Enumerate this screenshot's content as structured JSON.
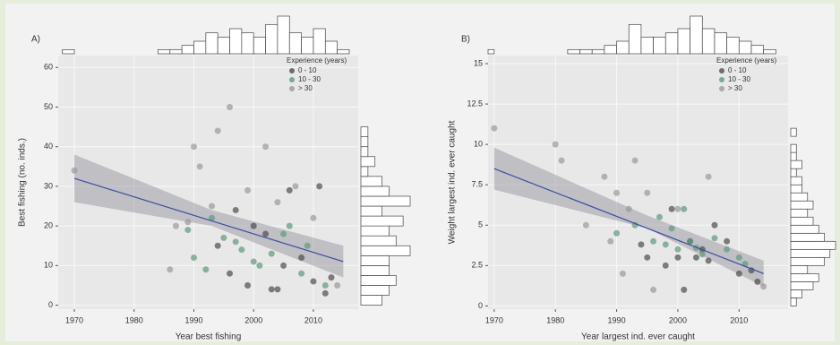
{
  "chart_data": [
    {
      "type": "scatter",
      "title": "A)",
      "xlabel": "Year best fishing",
      "ylabel": "Best fishing (no. inds.)",
      "xlim": [
        1967.3,
        2017.5
      ],
      "ylim": [
        -1,
        63
      ],
      "xticks": [
        1970,
        1980,
        1990,
        2000,
        2010
      ],
      "yticks": [
        0,
        10,
        20,
        30,
        40,
        50,
        60
      ],
      "grid": true,
      "legend_title": "Experience (years)",
      "legend_position": "top-right",
      "series": [
        {
          "name": "0 - 10",
          "color": "#4d4d4d",
          "x": [
            1996,
            1999,
            2003,
            2005,
            2008,
            2010,
            2012,
            2002,
            2000,
            1994,
            1997,
            2006,
            2011,
            2004,
            2013
          ],
          "values": [
            8,
            5,
            4,
            10,
            12,
            6,
            3,
            18,
            20,
            15,
            24,
            29,
            30,
            4,
            7
          ]
        },
        {
          "name": "10 - 30",
          "color": "#5f9a7c",
          "x": [
            1990,
            1992,
            1995,
            1998,
            2001,
            2003,
            2006,
            2009,
            1989,
            1993,
            2000,
            2005,
            2008,
            1997,
            2012
          ],
          "values": [
            12,
            9,
            17,
            14,
            10,
            13,
            20,
            15,
            19,
            22,
            11,
            18,
            8,
            16,
            5
          ]
        },
        {
          "name": "> 30",
          "color": "#9a9a9a",
          "x": [
            1970,
            1987,
            1990,
            1991,
            1994,
            1996,
            1999,
            2002,
            2004,
            2007,
            2010,
            2014,
            1989,
            1993,
            1986
          ],
          "values": [
            34,
            20,
            40,
            35,
            44,
            50,
            29,
            40,
            26,
            30,
            22,
            5,
            21,
            25,
            9
          ]
        }
      ],
      "trend": {
        "color": "#3a4fa0",
        "x": [
          1970,
          2015
        ],
        "values": [
          32,
          11
        ]
      },
      "band": {
        "x": [
          1970,
          1993,
          2015
        ],
        "lower": [
          26,
          20,
          7
        ],
        "upper": [
          38,
          24,
          15
        ]
      },
      "top_hist": {
        "bins": [
          1968,
          1970,
          1972,
          1974,
          1976,
          1978,
          1980,
          1982,
          1984,
          1986,
          1988,
          1990,
          1992,
          1994,
          1996,
          1998,
          2000,
          2002,
          2004,
          2006,
          2008,
          2010,
          2012,
          2014,
          2016
        ],
        "counts": [
          1,
          0,
          0,
          0,
          0,
          0,
          0,
          0,
          1,
          1,
          2,
          3,
          5,
          4,
          6,
          5,
          4,
          7,
          9,
          5,
          4,
          6,
          3,
          1
        ]
      },
      "right_hist": {
        "bins": [
          0,
          2.5,
          5,
          7.5,
          10,
          12.5,
          15,
          17.5,
          20,
          22.5,
          25,
          27.5,
          30,
          32.5,
          35,
          37.5,
          40,
          42.5,
          45
        ],
        "counts": [
          3,
          4,
          5,
          4,
          4,
          7,
          5,
          4,
          6,
          3,
          7,
          4,
          3,
          1,
          2,
          1,
          1,
          1
        ]
      }
    },
    {
      "type": "scatter",
      "title": "B)",
      "xlabel": "Year largest ind. ever caught",
      "ylabel": "Weight largest ind. ever caught",
      "xlim": [
        1969,
        2018
      ],
      "ylim": [
        -0.2,
        15.5
      ],
      "xticks": [
        1970,
        1980,
        1990,
        2000,
        2010
      ],
      "yticks": [
        0,
        2.5,
        5,
        7.5,
        10,
        12.5,
        15
      ],
      "grid": true,
      "legend_title": "Experience (years)",
      "legend_position": "top-right",
      "series": [
        {
          "name": "0 - 10",
          "color": "#4d4d4d",
          "x": [
            1995,
            1998,
            2000,
            2002,
            2004,
            2006,
            2010,
            2012,
            1999,
            2001,
            2003,
            2008,
            1994,
            2005,
            2013
          ],
          "values": [
            3,
            2.5,
            3,
            4,
            3.5,
            5,
            2,
            2.2,
            6,
            1,
            3,
            4,
            3.8,
            2.8,
            1.5
          ]
        },
        {
          "name": "10 - 30",
          "color": "#5f9a7c",
          "x": [
            1990,
            1993,
            1996,
            1998,
            2000,
            2002,
            2004,
            2006,
            2008,
            2010,
            1997,
            1999,
            2001,
            2003,
            2011
          ],
          "values": [
            4.5,
            5,
            4,
            3.8,
            3.5,
            4,
            3.2,
            4.2,
            3.5,
            3,
            5.5,
            4.8,
            6,
            3.6,
            2.6
          ]
        },
        {
          "name": "> 30",
          "color": "#9a9a9a",
          "x": [
            1970,
            1980,
            1981,
            1985,
            1988,
            1990,
            1992,
            1993,
            1995,
            1996,
            2000,
            2005,
            2014,
            1989,
            1991
          ],
          "values": [
            11,
            10,
            9,
            5,
            8,
            7,
            6,
            9,
            7,
            1,
            6,
            8,
            1.2,
            4,
            2
          ]
        }
      ],
      "trend": {
        "color": "#3a4fa0",
        "x": [
          1970,
          2014
        ],
        "values": [
          8.5,
          2
        ]
      },
      "band": {
        "x": [
          1970,
          1995,
          2014
        ],
        "lower": [
          7.2,
          4.8,
          1.2
        ],
        "upper": [
          9.8,
          5.6,
          2.8
        ]
      },
      "top_hist": {
        "bins": [
          1968,
          1970,
          1972,
          1974,
          1976,
          1978,
          1980,
          1982,
          1984,
          1986,
          1988,
          1990,
          1992,
          1994,
          1996,
          1998,
          2000,
          2002,
          2004,
          2006,
          2008,
          2010,
          2012,
          2014,
          2016
        ],
        "counts": [
          1,
          0,
          0,
          0,
          0,
          0,
          0,
          1,
          1,
          1,
          2,
          3,
          7,
          4,
          4,
          5,
          6,
          9,
          6,
          5,
          4,
          3,
          2,
          1
        ]
      },
      "right_hist": {
        "bins": [
          0,
          0.5,
          1,
          1.5,
          2,
          2.5,
          3,
          3.5,
          4,
          4.5,
          5,
          5.5,
          6,
          6.5,
          7,
          7.5,
          8,
          8.5,
          9,
          9.5,
          10,
          10.5,
          11
        ],
        "counts": [
          1,
          2,
          4,
          5,
          3,
          6,
          7,
          8,
          6,
          5,
          4,
          3,
          4,
          3,
          2,
          2,
          1,
          2,
          1,
          1,
          0,
          1
        ]
      }
    }
  ]
}
